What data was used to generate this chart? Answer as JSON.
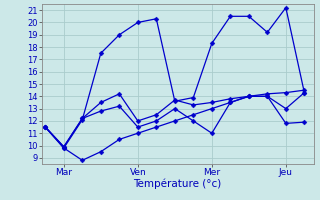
{
  "title": "",
  "xlabel": "Température (°c)",
  "ylabel": "",
  "bg_color": "#cce8e8",
  "grid_color": "#aacccc",
  "line_color": "#0000cc",
  "ylim": [
    8.5,
    21.5
  ],
  "yticks": [
    9,
    10,
    11,
    12,
    13,
    14,
    15,
    16,
    17,
    18,
    19,
    20,
    21
  ],
  "x_tick_positions": [
    1,
    5,
    9,
    13
  ],
  "x_tick_labels": [
    "Mar",
    "Ven",
    "Mer",
    "Jeu"
  ],
  "xlim": [
    -0.2,
    14.5
  ],
  "series": [
    [
      11.5,
      9.8,
      12.1,
      17.5,
      19.0,
      20.0,
      20.3,
      13.6,
      13.9,
      18.3,
      20.5,
      20.5,
      19.2,
      21.2,
      14.3
    ],
    [
      11.5,
      9.9,
      12.2,
      13.5,
      14.2,
      12.0,
      12.5,
      13.7,
      13.3,
      13.5,
      13.8,
      14.0,
      14.0,
      13.0,
      14.3
    ],
    [
      11.5,
      9.9,
      12.2,
      12.8,
      13.2,
      11.5,
      12.0,
      13.0,
      12.0,
      11.0,
      13.5,
      14.0,
      14.0,
      11.8,
      11.9
    ],
    [
      11.5,
      9.8,
      8.8,
      9.5,
      10.5,
      11.0,
      11.5,
      12.0,
      12.5,
      13.0,
      13.5,
      14.0,
      14.2,
      14.3,
      14.5
    ]
  ]
}
